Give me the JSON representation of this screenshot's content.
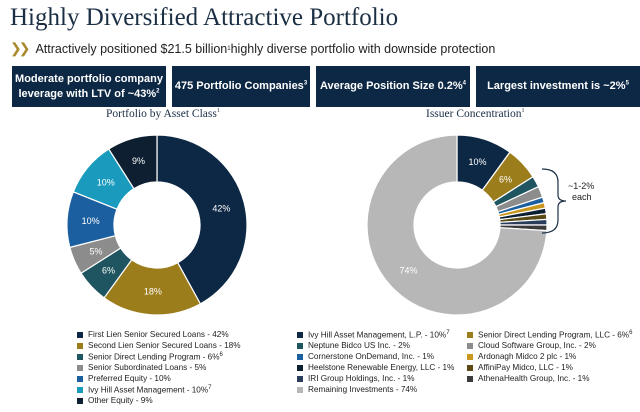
{
  "header": {
    "title": "Highly Diversified Attractive Portfolio",
    "subtitle_pre": "Attractively positioned $21.5 billion",
    "subtitle_sup": "1",
    "subtitle_post": " highly diverse portfolio with downside protection"
  },
  "stats": [
    {
      "line1": "Moderate portfolio company",
      "line2": "leverage with LTV of ~43%",
      "sup": "2"
    },
    {
      "line1": "475 Portfolio Companies",
      "line2": "",
      "sup": "3"
    },
    {
      "line1": "Average Position Size 0.2%",
      "line2": "",
      "sup": "4"
    },
    {
      "line1": "Largest investment is ~2%",
      "line2": "",
      "sup": "5"
    }
  ],
  "colors": {
    "navy": "#0d2845",
    "gold": "#9c7d1c",
    "slate": "#1f5560",
    "gray": "#8c8c8c",
    "blue": "#1c5fa0",
    "teal": "#1a9bbe",
    "dark": "#0d1f30",
    "lightgray": "#b7b7b7",
    "bracket": "#1a2e44"
  },
  "chart_data": [
    {
      "type": "pie",
      "title": "Portfolio by Asset Class",
      "title_sup": "1",
      "donut": true,
      "slices": [
        {
          "name": "First Lien Senior Secured Loans - 42%",
          "value": 42,
          "label": "42%",
          "color": "#0d2845",
          "label_color": "#ffffff"
        },
        {
          "name": "Second Lien Senior Secured Loans - 18%",
          "value": 18,
          "label": "18%",
          "color": "#9c7d1c",
          "label_color": "#ffffff"
        },
        {
          "name": "Senior Direct Lending Program - 6%",
          "sup": "6",
          "value": 6,
          "label": "6%",
          "color": "#1f5560",
          "label_color": "#ffffff"
        },
        {
          "name": "Senior Subordinated Loans - 5%",
          "value": 5,
          "label": "5%",
          "color": "#8c8c8c",
          "label_color": "#ffffff"
        },
        {
          "name": "Preferred Equity - 10%",
          "value": 10,
          "label": "10%",
          "color": "#1c5fa0",
          "label_color": "#ffffff"
        },
        {
          "name": "Ivy Hill Asset Management - 10%",
          "sup": "7",
          "value": 10,
          "label": "10%",
          "color": "#1a9bbe",
          "label_color": "#ffffff"
        },
        {
          "name": "Other Equity - 9%",
          "value": 9,
          "label": "9%",
          "color": "#0d1f30",
          "label_color": "#ffffff"
        }
      ]
    },
    {
      "type": "pie",
      "title": "Issuer Concentration",
      "title_sup": "1",
      "donut": true,
      "slices": [
        {
          "name": "Ivy Hill Asset Management, L.P. - 10%",
          "sup": "7",
          "value": 10,
          "label": "10%",
          "color": "#0d2845",
          "label_color": "#ffffff"
        },
        {
          "name": "Senior Direct Lending Program, LLC - 6%",
          "sup": "6",
          "value": 6,
          "label": "6%",
          "color": "#9c7d1c",
          "label_color": "#ffffff"
        },
        {
          "name": "Neptune Bidco US Inc. - 2%",
          "value": 2,
          "label": "",
          "color": "#1f5560"
        },
        {
          "name": "Cloud Software Group, Inc. - 2%",
          "value": 2,
          "label": "",
          "color": "#8c8c8c"
        },
        {
          "name": "Cornerstone OnDemand, Inc. - 1%",
          "value": 1,
          "label": "",
          "color": "#1c5fa0"
        },
        {
          "name": "Ardonagh Midco 2 plc - 1%",
          "value": 1,
          "label": "",
          "color": "#c9961e"
        },
        {
          "name": "Heelstone Renewable Energy, LLC - 1%",
          "value": 1,
          "label": "",
          "color": "#0d1f30"
        },
        {
          "name": "AffiniPay Midco, LLC - 1%",
          "value": 1,
          "label": "",
          "color": "#5a4a14"
        },
        {
          "name": "IRI Group Holdings, Inc. - 1%",
          "value": 1,
          "label": "",
          "color": "#2a3e5c"
        },
        {
          "name": "AthenaHealth Group, Inc. - 1%",
          "value": 1,
          "label": "",
          "color": "#3b3b3b"
        },
        {
          "name": "Remaining Investments - 74%",
          "value": 74,
          "label": "74%",
          "color": "#b7b7b7",
          "label_color": "#ffffff"
        }
      ],
      "annotation": {
        "line1": "~1-2%",
        "line2": "each"
      }
    }
  ]
}
